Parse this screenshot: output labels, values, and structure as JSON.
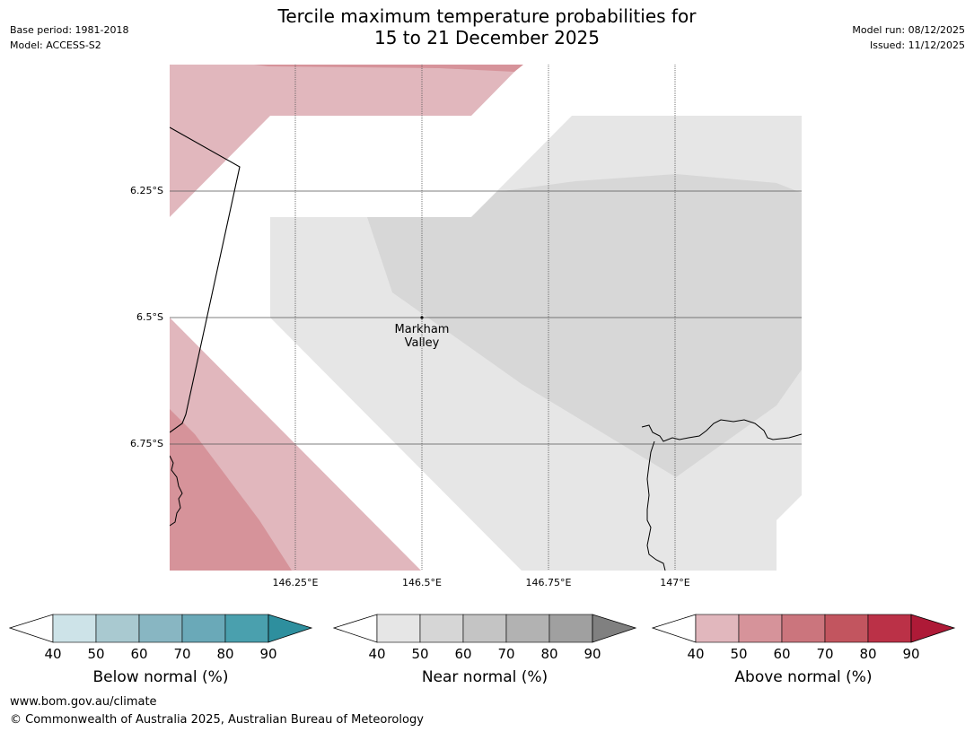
{
  "title": {
    "line1": "Tercile maximum temperature probabilities for",
    "line2": "15 to 21 December 2025"
  },
  "meta": {
    "base_period": "Base period: 1981-2018",
    "model": "Model: ACCESS-S2",
    "model_run": "Model run: 08/12/2025",
    "issued": "Issued: 11/12/2025"
  },
  "map": {
    "lat_labels": [
      "6.25°S",
      "6.5°S",
      "6.75°S"
    ],
    "lon_labels": [
      "146.25°E",
      "146.5°E",
      "146.75°E",
      "147°E"
    ],
    "place": {
      "line1": "Markham",
      "line2": "Valley"
    }
  },
  "legends": {
    "below": {
      "title": "Below normal (%)",
      "ticks": [
        "40",
        "50",
        "60",
        "70",
        "80",
        "90"
      ],
      "colors": [
        "#cde3e8",
        "#a9c9d0",
        "#88b6c2",
        "#6aa9b8",
        "#4aa0ae",
        "#2e8f9e"
      ]
    },
    "near": {
      "title": "Near normal (%)",
      "ticks": [
        "40",
        "50",
        "60",
        "70",
        "80",
        "90"
      ],
      "colors": [
        "#e6e6e6",
        "#d6d6d6",
        "#c4c4c4",
        "#b2b2b2",
        "#a0a0a0",
        "#808080"
      ]
    },
    "above": {
      "title": "Above normal (%)",
      "ticks": [
        "40",
        "50",
        "60",
        "70",
        "80",
        "90"
      ],
      "colors": [
        "#e1b7bd",
        "#d6939a",
        "#cb757d",
        "#c2555f",
        "#bb3147",
        "#ae1a37"
      ]
    }
  },
  "map_colors": {
    "above_40": "#e1b7bd",
    "above_50": "#d6939a",
    "near_40": "#e6e6e6",
    "near_50": "#d7d7d7"
  },
  "footer": {
    "url": "www.bom.gov.au/climate",
    "copyright": "© Commonwealth of Australia 2025, Australian Bureau of Meteorology"
  }
}
